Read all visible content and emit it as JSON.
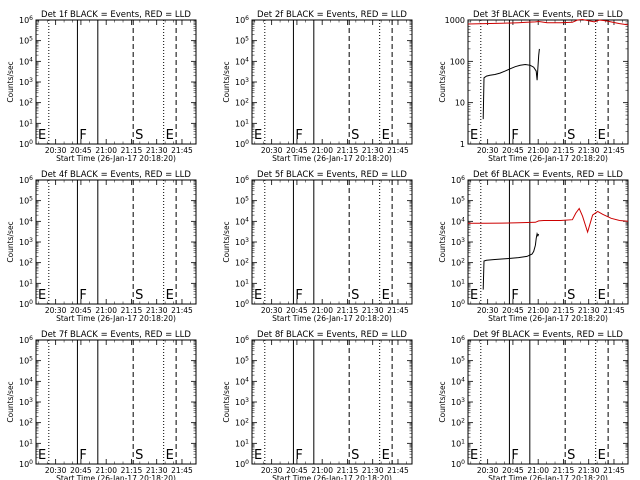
{
  "time_axis_label": "Start Time (26-Jan-17 20:18:20)",
  "y_axis_label": "Counts/sec",
  "x_tick_labels": [
    "20:30",
    "20:45",
    "21:00",
    "21:15",
    "21:30",
    "21:45"
  ],
  "marker_labels": [
    "E",
    "F",
    "S",
    "E"
  ],
  "colors": {
    "events": "#000000",
    "lld": "#cc0000",
    "markers": "#000000"
  },
  "chart_data": [
    {
      "type": "line",
      "title": "Det 1f BLACK = Events, RED = LLD",
      "xlabel": "Start Time (26-Jan-17 20:18:20)",
      "ylabel": "Counts/sec",
      "x_unit": "minutes since 20:18:20",
      "xlim": [
        0,
        95
      ],
      "yscale": "log",
      "ylim": [
        1,
        1000000
      ],
      "y_tick_labels": [
        "10^0",
        "10^1",
        "10^2",
        "10^3",
        "10^4",
        "10^5",
        "10^6"
      ],
      "series": []
    },
    {
      "type": "line",
      "title": "Det 2f BLACK = Events, RED = LLD",
      "xlabel": "Start Time (26-Jan-17 20:18:20)",
      "ylabel": "Counts/sec",
      "x_unit": "minutes since 20:18:20",
      "xlim": [
        0,
        95
      ],
      "yscale": "log",
      "ylim": [
        1,
        1000000
      ],
      "y_tick_labels": [
        "10^0",
        "10^1",
        "10^2",
        "10^3",
        "10^4",
        "10^5",
        "10^6"
      ],
      "series": []
    },
    {
      "type": "line",
      "title": "Det 3f BLACK = Events, RED = LLD",
      "xlabel": "Start Time (26-Jan-17 20:18:20)",
      "ylabel": "Counts/sec",
      "x_unit": "minutes since 20:18:20",
      "xlim": [
        0,
        95
      ],
      "yscale": "log",
      "ylim": [
        1,
        1000
      ],
      "y_tick_labels": [
        "1",
        "10",
        "100",
        "1000"
      ],
      "series": [
        {
          "name": "Events",
          "color": "#000000",
          "x": [
            9,
            9.5,
            11,
            13,
            16,
            19,
            22,
            25,
            28,
            31,
            34,
            37,
            39,
            40.5,
            41,
            41.5,
            42,
            42.4
          ],
          "y": [
            4,
            40,
            44,
            46,
            48,
            52,
            58,
            66,
            74,
            80,
            84,
            80,
            72,
            58,
            35,
            70,
            140,
            200
          ]
        },
        {
          "name": "LLD",
          "color": "#cc0000",
          "x": [
            0,
            10,
            20,
            30,
            35,
            40,
            42,
            47,
            55,
            62,
            65,
            68,
            72,
            75,
            78,
            82,
            86,
            90,
            95
          ],
          "y": [
            800,
            820,
            830,
            860,
            880,
            900,
            920,
            860,
            860,
            880,
            1000,
            1030,
            950,
            900,
            1000,
            950,
            880,
            820,
            760
          ]
        }
      ]
    },
    {
      "type": "line",
      "title": "Det 4f BLACK = Events, RED = LLD",
      "xlabel": "Start Time (26-Jan-17 20:18:20)",
      "ylabel": "Counts/sec",
      "x_unit": "minutes since 20:18:20",
      "xlim": [
        0,
        95
      ],
      "yscale": "log",
      "ylim": [
        1,
        1000000
      ],
      "y_tick_labels": [
        "10^0",
        "10^1",
        "10^2",
        "10^3",
        "10^4",
        "10^5",
        "10^6"
      ],
      "series": []
    },
    {
      "type": "line",
      "title": "Det 5f BLACK = Events, RED = LLD",
      "xlabel": "Start Time (26-Jan-17 20:18:20)",
      "ylabel": "Counts/sec",
      "x_unit": "minutes since 20:18:20",
      "xlim": [
        0,
        95
      ],
      "yscale": "log",
      "ylim": [
        1,
        1000000
      ],
      "y_tick_labels": [
        "10^0",
        "10^1",
        "10^2",
        "10^3",
        "10^4",
        "10^5",
        "10^6"
      ],
      "series": []
    },
    {
      "type": "line",
      "title": "Det 6f BLACK = Events, RED = LLD",
      "xlabel": "Start Time (26-Jan-17 20:18:20)",
      "ylabel": "Counts/sec",
      "x_unit": "minutes since 20:18:20",
      "xlim": [
        0,
        95
      ],
      "yscale": "log",
      "ylim": [
        1,
        1000000
      ],
      "y_tick_labels": [
        "10^0",
        "10^1",
        "10^2",
        "10^3",
        "10^4",
        "10^5",
        "10^6"
      ],
      "series": [
        {
          "name": "Events",
          "color": "#000000",
          "x": [
            9,
            9.5,
            11,
            15,
            20,
            25,
            30,
            35,
            38,
            39,
            40,
            40.5,
            41,
            41.5,
            42
          ],
          "y": [
            5,
            120,
            130,
            140,
            150,
            160,
            175,
            200,
            260,
            350,
            700,
            1500,
            2500,
            2000,
            2400
          ]
        },
        {
          "name": "LLD",
          "color": "#cc0000",
          "x": [
            0,
            10,
            20,
            30,
            40,
            42,
            45,
            55,
            62,
            64,
            66,
            68,
            71,
            74,
            77,
            80,
            85,
            90,
            95
          ],
          "y": [
            8000,
            8000,
            8200,
            8500,
            9000,
            10500,
            11000,
            11000,
            12000,
            25000,
            42000,
            18000,
            3000,
            20000,
            30000,
            22000,
            14000,
            11000,
            10000
          ]
        }
      ]
    },
    {
      "type": "line",
      "title": "Det 7f BLACK = Events, RED = LLD",
      "xlabel": "Start Time (26-Jan-17 20:18:20)",
      "ylabel": "Counts/sec",
      "x_unit": "minutes since 20:18:20",
      "xlim": [
        0,
        95
      ],
      "yscale": "log",
      "ylim": [
        1,
        1000000
      ],
      "y_tick_labels": [
        "10^0",
        "10^1",
        "10^2",
        "10^3",
        "10^4",
        "10^5",
        "10^6"
      ],
      "series": []
    },
    {
      "type": "line",
      "title": "Det 8f BLACK = Events, RED = LLD",
      "xlabel": "Start Time (26-Jan-17 20:18:20)",
      "ylabel": "Counts/sec",
      "x_unit": "minutes since 20:18:20",
      "xlim": [
        0,
        95
      ],
      "yscale": "log",
      "ylim": [
        1,
        1000000
      ],
      "y_tick_labels": [
        "10^0",
        "10^1",
        "10^2",
        "10^3",
        "10^4",
        "10^5",
        "10^6"
      ],
      "series": []
    },
    {
      "type": "line",
      "title": "Det 9f BLACK = Events, RED = LLD",
      "xlabel": "Start Time (26-Jan-17 20:18:20)",
      "ylabel": "Counts/sec",
      "x_unit": "minutes since 20:18:20",
      "xlim": [
        0,
        95
      ],
      "yscale": "log",
      "ylim": [
        1,
        1000000
      ],
      "y_tick_labels": [
        "10^0",
        "10^1",
        "10^2",
        "10^3",
        "10^4",
        "10^5",
        "10^6"
      ],
      "series": []
    }
  ],
  "x_tick_values": [
    11.67,
    26.67,
    41.67,
    56.67,
    71.67,
    86.67
  ],
  "minor_tick_values": [
    1.67,
    6.67,
    16.67,
    21.67,
    31.67,
    36.67,
    46.67,
    51.67,
    61.67,
    66.67,
    76.67,
    81.67,
    91.67
  ],
  "time_markers": [
    {
      "x": 0,
      "style": "dotted",
      "label": "E"
    },
    {
      "x": 7.6,
      "style": "dotted",
      "label": ""
    },
    {
      "x": 24.6,
      "style": "solid",
      "label": "F"
    },
    {
      "x": 36.7,
      "style": "solid",
      "label": ""
    },
    {
      "x": 57.7,
      "style": "dashed",
      "label": "S"
    },
    {
      "x": 75.8,
      "style": "dotted",
      "label": "E"
    },
    {
      "x": 83.2,
      "style": "dashed",
      "label": ""
    },
    {
      "x": 95,
      "style": "dashed",
      "label": ""
    }
  ]
}
